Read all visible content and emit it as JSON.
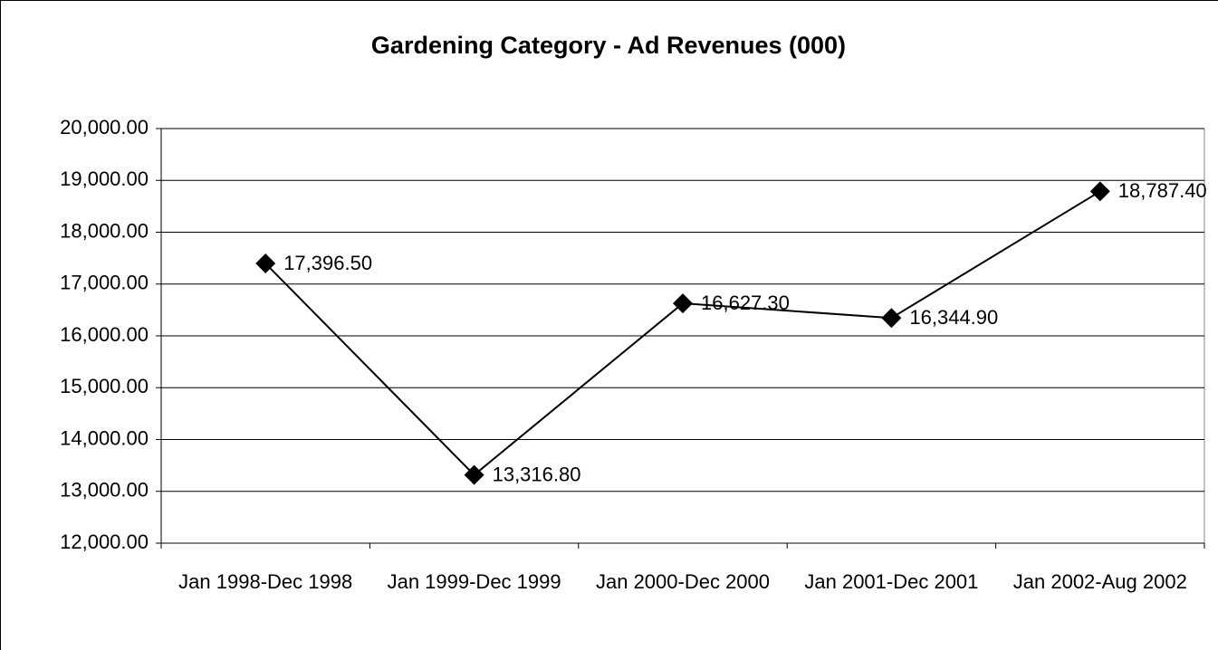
{
  "chart_data": {
    "type": "line",
    "title": "Gardening Category - Ad Revenues (000)",
    "categories": [
      "Jan 1998-Dec 1998",
      "Jan 1999-Dec 1999",
      "Jan 2000-Dec 2000",
      "Jan 2001-Dec 2001",
      "Jan 2002-Aug 2002"
    ],
    "values": [
      17396.5,
      13316.8,
      16627.3,
      16344.9,
      18787.4
    ],
    "value_labels": [
      "17,396.50",
      "13,316.80",
      "16,627.30",
      "16,344.90",
      "18,787.40"
    ],
    "color": "#000000",
    "ylim": [
      12000,
      20000
    ],
    "yticks": [
      {
        "value": 12000,
        "label": "12,000.00"
      },
      {
        "value": 13000,
        "label": "13,000.00"
      },
      {
        "value": 14000,
        "label": "14,000.00"
      },
      {
        "value": 15000,
        "label": "15,000.00"
      },
      {
        "value": 16000,
        "label": "16,000.00"
      },
      {
        "value": 17000,
        "label": "17,000.00"
      },
      {
        "value": 18000,
        "label": "18,000.00"
      },
      {
        "value": 19000,
        "label": "19,000.00"
      },
      {
        "value": 20000,
        "label": "20,000.00"
      }
    ],
    "grid": true
  }
}
